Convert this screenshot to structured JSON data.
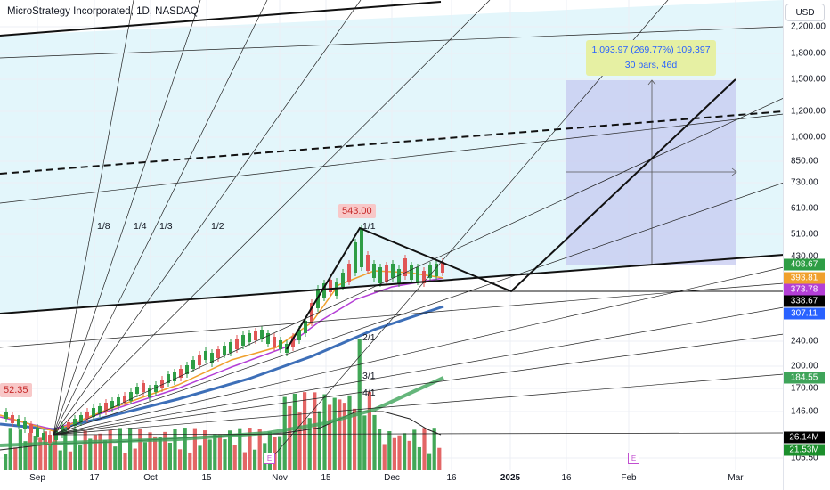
{
  "header": {
    "title": "MicroStrategy Incorporated, 1D, NASDAQ",
    "currency": "USD"
  },
  "price_axis": {
    "ticks": [
      "2,200.00",
      "1,800.00",
      "1,500.00",
      "1,200.00",
      "1,000.00",
      "850.00",
      "730.00",
      "610.00",
      "510.00",
      "430.00",
      "240.00",
      "200.00",
      "170.00",
      "146.00",
      "105.50"
    ]
  },
  "price_badges": [
    {
      "value": "408.67",
      "color": "#2e9d45"
    },
    {
      "value": "393.81",
      "color": "#f0a02c"
    },
    {
      "value": "373.78",
      "color": "#b43fd6"
    },
    {
      "value": "338.67",
      "color": "#000000"
    },
    {
      "value": "307.11",
      "color": "#2962ff"
    },
    {
      "value": "184.55",
      "color": "#3fa45a"
    },
    {
      "value": "26.14M",
      "color": "#000000"
    },
    {
      "value": "21.53M",
      "color": "#1b8f2c"
    }
  ],
  "time_axis": {
    "labels": [
      {
        "text": "Sep",
        "bold": false
      },
      {
        "text": "17",
        "bold": false
      },
      {
        "text": "Oct",
        "bold": false
      },
      {
        "text": "15",
        "bold": false
      },
      {
        "text": "Nov",
        "bold": false
      },
      {
        "text": "15",
        "bold": false
      },
      {
        "text": "Dec",
        "bold": false
      },
      {
        "text": "16",
        "bold": false
      },
      {
        "text": "2025",
        "bold": true
      },
      {
        "text": "16",
        "bold": false
      },
      {
        "text": "Feb",
        "bold": false
      },
      {
        "text": "Mar",
        "bold": false
      }
    ]
  },
  "annotations": {
    "measure_line1": "1,093.97 (269.77%) 109,397",
    "measure_line2": "30 bars, 46d",
    "high_label": "543.00",
    "low_label": "52.35",
    "gann_fans": [
      "1/8",
      "1/4",
      "1/3",
      "1/2",
      "1/1",
      "2/1",
      "3/1",
      "4/1"
    ],
    "earnings_marker": "E"
  },
  "colors": {
    "up": "#2e9d45",
    "down": "#e05555",
    "measure_fill": "#c6c9f0",
    "channel_fill": "#e3f6fb"
  }
}
